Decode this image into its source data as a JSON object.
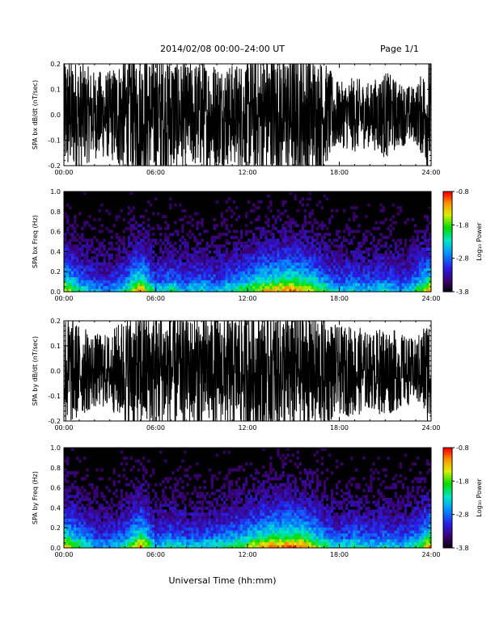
{
  "header": {
    "title": "2014/02/08  00:00–24:00 UT",
    "page": "Page 1/1"
  },
  "footer": {
    "xlabel": "Universal Time (hh:mm)"
  },
  "chart_data": [
    {
      "type": "line",
      "name": "bx-waveform",
      "ylabel": "SPA bx dB/dt (nT/sec)",
      "xlim": [
        0,
        24
      ],
      "ylim": [
        -0.2,
        0.2
      ],
      "xticks": [
        "00:00",
        "06:00",
        "12:00",
        "18:00",
        "24:00"
      ],
      "yticks": [
        "0.2",
        "0.1",
        "0.0",
        "-0.1",
        "-0.2"
      ],
      "x": [
        0,
        1,
        2,
        3,
        4,
        5,
        6,
        7,
        8,
        9,
        10,
        11,
        12,
        13,
        14,
        15,
        16,
        17,
        18,
        19,
        20,
        21,
        22,
        23,
        24
      ],
      "envelope": [
        0.2,
        0.17,
        0.14,
        0.14,
        0.2,
        0.2,
        0.2,
        0.2,
        0.16,
        0.18,
        0.17,
        0.16,
        0.18,
        0.2,
        0.2,
        0.2,
        0.2,
        0.17,
        0.1,
        0.12,
        0.1,
        0.14,
        0.1,
        0.09,
        0.2
      ]
    },
    {
      "type": "heatmap",
      "name": "bx-spectrogram",
      "ylabel": "SPA bx Freq (Hz)",
      "xlim": [
        0,
        24
      ],
      "ylim": [
        0,
        1
      ],
      "xticks": [
        "00:00",
        "06:00",
        "12:00",
        "18:00",
        "24:00"
      ],
      "yticks": [
        "1.0",
        "0.8",
        "0.6",
        "0.4",
        "0.2",
        "0.0"
      ],
      "colorbar": {
        "label": "Log₁₀ Power",
        "ticks": [
          "-0.8",
          "-1.8",
          "-2.8",
          "-3.8"
        ],
        "range": [
          -3.8,
          -0.8
        ]
      },
      "activity": [
        0.8,
        0.55,
        0.4,
        0.35,
        0.5,
        0.9,
        0.45,
        0.55,
        0.45,
        0.5,
        0.45,
        0.55,
        0.65,
        0.8,
        0.85,
        0.9,
        0.8,
        0.6,
        0.45,
        0.5,
        0.45,
        0.5,
        0.4,
        0.55,
        0.9
      ]
    },
    {
      "type": "line",
      "name": "by-waveform",
      "ylabel": "SPA by dB/dt (nT/sec)",
      "xlim": [
        0,
        24
      ],
      "ylim": [
        -0.2,
        0.2
      ],
      "xticks": [
        "00:00",
        "06:00",
        "12:00",
        "18:00",
        "24:00"
      ],
      "yticks": [
        "0.2",
        "0.1",
        "0.0",
        "-0.1",
        "-0.2"
      ],
      "x": [
        0,
        1,
        2,
        3,
        4,
        5,
        6,
        7,
        8,
        9,
        10,
        11,
        12,
        13,
        14,
        15,
        16,
        17,
        18,
        19,
        20,
        21,
        22,
        23,
        24
      ],
      "envelope": [
        0.2,
        0.15,
        0.12,
        0.12,
        0.18,
        0.2,
        0.2,
        0.2,
        0.17,
        0.2,
        0.18,
        0.18,
        0.2,
        0.2,
        0.2,
        0.2,
        0.2,
        0.18,
        0.14,
        0.15,
        0.12,
        0.15,
        0.12,
        0.1,
        0.2
      ]
    },
    {
      "type": "heatmap",
      "name": "by-spectrogram",
      "ylabel": "SPA by Freq (Hz)",
      "xlim": [
        0,
        24
      ],
      "ylim": [
        0,
        1
      ],
      "xticks": [
        "00:00",
        "06:00",
        "12:00",
        "18:00",
        "24:00"
      ],
      "yticks": [
        "1.0",
        "0.8",
        "0.6",
        "0.4",
        "0.2",
        "0.0"
      ],
      "colorbar": {
        "label": "Log₁₀ Power",
        "ticks": [
          "-0.8",
          "-1.8",
          "-2.8",
          "-3.8"
        ],
        "range": [
          -3.8,
          -0.8
        ]
      },
      "activity": [
        0.85,
        0.6,
        0.45,
        0.4,
        0.55,
        0.9,
        0.45,
        0.55,
        0.45,
        0.5,
        0.5,
        0.6,
        0.7,
        0.85,
        0.9,
        0.95,
        0.85,
        0.6,
        0.45,
        0.55,
        0.45,
        0.5,
        0.45,
        0.55,
        0.9
      ]
    }
  ]
}
